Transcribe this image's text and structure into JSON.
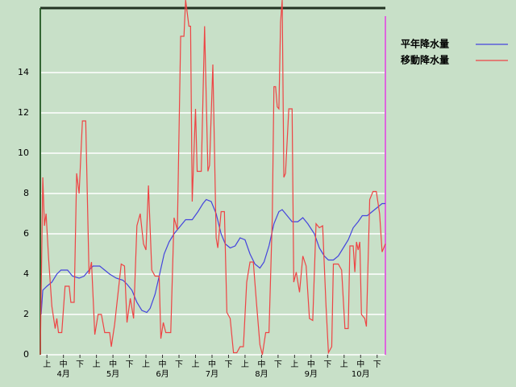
{
  "chart_data": {
    "type": "line",
    "ylim": [
      0,
      17.2
    ],
    "yticks": [
      0,
      2,
      4,
      6,
      8,
      10,
      12,
      14
    ],
    "grid": true,
    "xlim": [
      0,
      209
    ],
    "xticks": [
      {
        "value": 4,
        "label": "上"
      },
      {
        "value": 14,
        "label": "中"
      },
      {
        "value": 24,
        "label": "下"
      },
      {
        "value": 34,
        "label": "上"
      },
      {
        "value": 44,
        "label": "中"
      },
      {
        "value": 54,
        "label": "下"
      },
      {
        "value": 64,
        "label": "上"
      },
      {
        "value": 74,
        "label": "中"
      },
      {
        "value": 84,
        "label": "下"
      },
      {
        "value": 94,
        "label": "上"
      },
      {
        "value": 104,
        "label": "中"
      },
      {
        "value": 114,
        "label": "下"
      },
      {
        "value": 124,
        "label": "上"
      },
      {
        "value": 134,
        "label": "中"
      },
      {
        "value": 144,
        "label": "下"
      },
      {
        "value": 154,
        "label": "上"
      },
      {
        "value": 164,
        "label": "中"
      },
      {
        "value": 174,
        "label": "下"
      },
      {
        "value": 184,
        "label": "上"
      },
      {
        "value": 194,
        "label": "中"
      },
      {
        "value": 204,
        "label": "下"
      }
    ],
    "month_labels": [
      {
        "value": 14,
        "label": "4月"
      },
      {
        "value": 44,
        "label": "5月"
      },
      {
        "value": 74,
        "label": "6月"
      },
      {
        "value": 104,
        "label": "7月"
      },
      {
        "value": 134,
        "label": "8月"
      },
      {
        "value": 164,
        "label": "9月"
      },
      {
        "value": 194,
        "label": "10月"
      }
    ],
    "series": [
      {
        "name": "平年降水量",
        "color": "#4444dd",
        "x": [
          0.5,
          1.5,
          4,
          7,
          10,
          12.5,
          16.5,
          19.5,
          23.5,
          26.5,
          29.5,
          32,
          36,
          39,
          42,
          46,
          50,
          52.5,
          55.5,
          58.5,
          61.5,
          64.5,
          66.5,
          69.5,
          72,
          75,
          78,
          81,
          84,
          88,
          92,
          95.5,
          98.5,
          100.5,
          103.5,
          106.5,
          109.5,
          112,
          115,
          118,
          121,
          124,
          127,
          130,
          133,
          135.5,
          138.5,
          141.5,
          144.5,
          146.5,
          149.5,
          152.5,
          156,
          159,
          162,
          166,
          169,
          172,
          174.5,
          177.5,
          180.5,
          183.5,
          186.5,
          189.5,
          192.5,
          195,
          198,
          201,
          204,
          207,
          209
        ],
        "values": [
          2.0,
          3.2,
          3.4,
          3.6,
          4.0,
          4.2,
          4.2,
          3.9,
          3.8,
          3.9,
          4.2,
          4.4,
          4.4,
          4.2,
          4.0,
          3.8,
          3.7,
          3.5,
          3.2,
          2.6,
          2.2,
          2.1,
          2.3,
          3.0,
          3.9,
          5.0,
          5.6,
          6.0,
          6.3,
          6.7,
          6.7,
          7.1,
          7.5,
          7.7,
          7.6,
          7.0,
          6.0,
          5.5,
          5.3,
          5.4,
          5.8,
          5.7,
          5.0,
          4.5,
          4.3,
          4.6,
          5.4,
          6.5,
          7.1,
          7.2,
          6.9,
          6.6,
          6.6,
          6.8,
          6.5,
          6.0,
          5.3,
          4.9,
          4.7,
          4.7,
          4.9,
          5.3,
          5.7,
          6.3,
          6.6,
          6.9,
          6.9,
          7.1,
          7.3,
          7.5,
          7.5
        ]
      },
      {
        "name": "移動降水量",
        "color": "#ee4444",
        "x": [
          0,
          1.5,
          2.5,
          3.5,
          5,
          7,
          9,
          10,
          11,
          13,
          15,
          17.5,
          18.5,
          20.5,
          22,
          23.5,
          25.5,
          27.5,
          29.5,
          31,
          33,
          35,
          37,
          39,
          42,
          43,
          45,
          47,
          49,
          51,
          52.5,
          54.5,
          56.5,
          58.5,
          60.5,
          62.5,
          64,
          65.5,
          67.5,
          69.5,
          72,
          73,
          74.5,
          76,
          79,
          81,
          83,
          85,
          87,
          88,
          90,
          91,
          92,
          94,
          95,
          97.5,
          99.5,
          101.5,
          102.5,
          104.5,
          106.5,
          107.5,
          109.5,
          111.5,
          113,
          115,
          117,
          119,
          121,
          123,
          125,
          127,
          129,
          131,
          133,
          134.5,
          136.5,
          138.5,
          140.5,
          141.5,
          142.5,
          143.5,
          144.5,
          145.5,
          146.5,
          147.5,
          148.5,
          150.5,
          152.5,
          153.5,
          155,
          157,
          159,
          161,
          163,
          165,
          167,
          169,
          171,
          173,
          174.5,
          176.5,
          177.5,
          180.5,
          182.5,
          184.5,
          186.5,
          187.5,
          189.5,
          190.5,
          191.5,
          192.5,
          193.5,
          194.5,
          196.5,
          197.5,
          199.5,
          201.5,
          203.5,
          205.5,
          207,
          209
        ],
        "values": [
          0,
          8.8,
          6.4,
          7.0,
          4.8,
          2.4,
          1.3,
          1.8,
          1.1,
          1.1,
          3.4,
          3.4,
          2.6,
          2.6,
          9.0,
          8.0,
          11.6,
          11.6,
          4.0,
          4.6,
          1.0,
          2.0,
          2.0,
          1.1,
          1.1,
          0.4,
          1.5,
          3.0,
          4.5,
          4.4,
          1.6,
          2.8,
          1.8,
          6.4,
          7.0,
          5.5,
          5.2,
          8.4,
          4.2,
          3.9,
          3.9,
          0.8,
          1.6,
          1.1,
          1.1,
          6.8,
          6.2,
          15.8,
          15.8,
          17.6,
          16.3,
          16.3,
          7.6,
          12.2,
          9.1,
          9.1,
          16.3,
          9.1,
          9.4,
          14.4,
          5.8,
          5.3,
          7.1,
          7.1,
          2.1,
          1.8,
          0.1,
          0.1,
          0.4,
          0.4,
          3.6,
          4.6,
          4.6,
          2.5,
          0.5,
          0,
          1.1,
          1.1,
          6.8,
          13.3,
          13.3,
          12.3,
          12.2,
          16.5,
          17.6,
          8.8,
          9.0,
          12.2,
          12.2,
          3.6,
          4.1,
          3.1,
          4.9,
          4.4,
          1.8,
          1.7,
          6.5,
          6.3,
          6.4,
          2.5,
          0.1,
          0.4,
          4.5,
          4.5,
          4.2,
          1.3,
          1.3,
          5.4,
          5.4,
          4.1,
          5.6,
          5.2,
          5.6,
          2.0,
          1.8,
          1.4,
          7.7,
          8.1,
          8.1,
          7.0,
          5.1,
          5.5
        ]
      }
    ]
  }
}
